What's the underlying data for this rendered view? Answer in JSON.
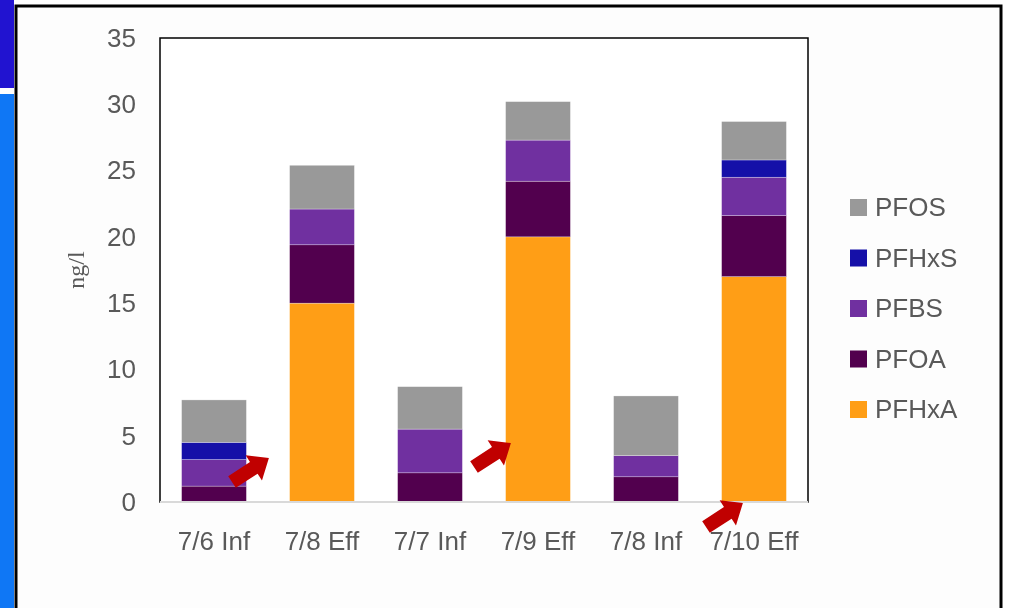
{
  "chart_data": {
    "type": "bar",
    "stacked": true,
    "ylabel": "ng/l",
    "categories": [
      "7/6 Inf",
      "7/8 Eff",
      "7/7 Inf",
      "7/9 Eff",
      "7/8 Inf",
      "7/10 Eff"
    ],
    "ylim": [
      0,
      35
    ],
    "yticks": [
      0,
      5,
      10,
      15,
      20,
      25,
      30,
      35
    ],
    "grid": false,
    "legend": "right",
    "series": [
      {
        "name": "PFHxA",
        "color": "#ff9e16",
        "values": [
          null,
          15.0,
          null,
          20.0,
          null,
          17.0
        ]
      },
      {
        "name": "PFOA",
        "color": "#52004e",
        "values": [
          1.2,
          4.4,
          2.2,
          4.2,
          1.9,
          4.6
        ]
      },
      {
        "name": "PFBS",
        "color": "#7030a0",
        "values": [
          2.0,
          2.7,
          3.3,
          3.1,
          1.6,
          2.9
        ]
      },
      {
        "name": "PFHxS",
        "color": "#1510a8",
        "values": [
          1.3,
          null,
          null,
          null,
          null,
          1.3
        ]
      },
      {
        "name": "PFOS",
        "color": "#999999",
        "values": [
          3.2,
          3.3,
          3.2,
          2.9,
          4.5,
          2.9
        ]
      }
    ]
  }
}
